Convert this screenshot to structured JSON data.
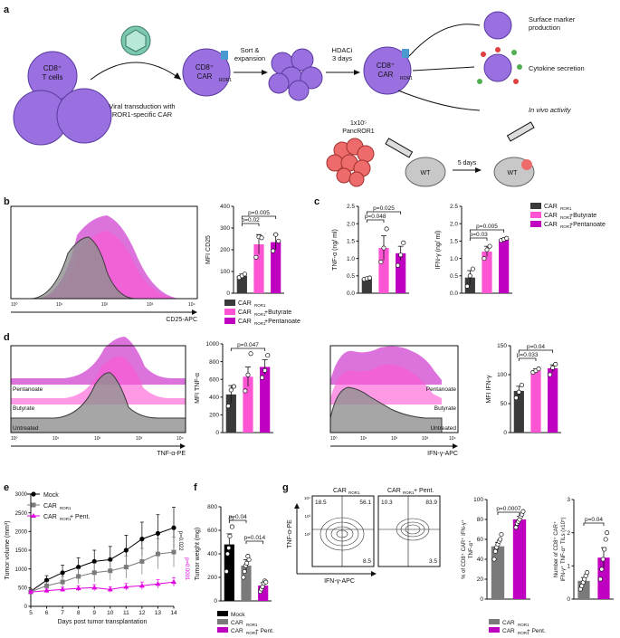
{
  "panel_labels": [
    "a",
    "b",
    "c",
    "d",
    "e",
    "f",
    "g"
  ],
  "colors": {
    "car": "#3a3a3a",
    "butyrate": "#ff55d4",
    "pentanoate": "#c000c0",
    "mock": "#000000",
    "grey": "#7a7a7a",
    "cell": "#9a6fe0"
  },
  "panel_a": {
    "cd8_t_cells": "CD8⁺\nT cells",
    "transduction": "Viral transduction with\nROR1-specific CAR",
    "car_cell": "CD8⁺\nCAR",
    "car_sub": "ROR1",
    "sort": "Sort &\nexpansion",
    "hdaci": "HDACi\n3 days",
    "panc_cells": "1x10⁵\nPancROR1",
    "five_days": "5 days",
    "wt": "WT",
    "outcome_1": "Surface marker\nproduction",
    "outcome_2": "Cytokine secretion",
    "outcome_3": "In vivo activity"
  },
  "legend": {
    "car": "CAR",
    "car_sub": "ROR1",
    "butyrate": "+Butyrate",
    "pentanoate": "+Pentanoate",
    "mock": "Mock",
    "pent": "+ Pent."
  },
  "panel_b": {
    "hist_xlabel": "CD25-APC",
    "hist_ticks": [
      "10⁰",
      "10¹",
      "10²",
      "10³",
      "10⁴"
    ],
    "chart_data": {
      "type": "bar",
      "categories": [
        "CAR ROR1",
        "CAR ROR1 +Butyrate",
        "CAR ROR1 +Pentanoate"
      ],
      "values": [
        80,
        225,
        235
      ],
      "errors": [
        8,
        45,
        35
      ],
      "points": [
        [
          72,
          80,
          88
        ],
        [
          165,
          260,
          255
        ],
        [
          195,
          270,
          240
        ]
      ],
      "ylabel": "MFI CD25",
      "ylim": [
        0,
        400
      ],
      "yticks": [
        0,
        100,
        200,
        300,
        400
      ],
      "annotations": [
        "p=0.005",
        "p=0.02"
      ]
    }
  },
  "panel_c": {
    "tnf": {
      "type": "bar",
      "categories": [
        "CAR ROR1",
        "+Butyrate",
        "+Pentanoate"
      ],
      "values": [
        0.42,
        1.3,
        1.15
      ],
      "errors": [
        0.03,
        0.35,
        0.2
      ],
      "points": [
        [
          0.4,
          0.42,
          0.44
        ],
        [
          0.9,
          1.3,
          1.85
        ],
        [
          0.8,
          1.1,
          1.45
        ]
      ],
      "ylabel": "TNF-α (ng/ ml)",
      "ylim": [
        0,
        2.5
      ],
      "yticks": [
        "0.0",
        "0.5",
        "1.0",
        "1.5",
        "2.0",
        "2.5"
      ],
      "annotations": [
        "p=0.025",
        "p=0.048"
      ]
    },
    "ifn": {
      "type": "bar",
      "categories": [
        "CAR ROR1",
        "+Butyrate",
        "+Pentanoate"
      ],
      "values": [
        0.45,
        1.2,
        1.55
      ],
      "errors": [
        0.2,
        0.15,
        0.03
      ],
      "points": [
        [
          0.2,
          0.5,
          0.7
        ],
        [
          1.0,
          1.25,
          1.35
        ],
        [
          1.52,
          1.55,
          1.58
        ]
      ],
      "ylabel": "IFN-γ (ng/ ml)",
      "ylim": [
        0,
        2.5
      ],
      "yticks": [
        "0.0",
        "0.5",
        "1.0",
        "1.5",
        "2.0",
        "2.5"
      ],
      "annotations": [
        "p=0.005",
        "p=0.03"
      ]
    }
  },
  "panel_d": {
    "hist1_xlabel": "TNF-α-PE",
    "hist2_xlabel": "IFN-γ-APC",
    "row_labels": [
      "Pentanoate",
      "Butyrate",
      "Untreated"
    ],
    "hist_ticks": [
      "10⁰",
      "10¹",
      "10²",
      "10³",
      "10⁴"
    ],
    "tnf": {
      "type": "bar",
      "values": [
        430,
        630,
        740
      ],
      "errors": [
        100,
        110,
        80
      ],
      "points": [
        [
          300,
          480,
          520
        ],
        [
          470,
          650,
          890
        ],
        [
          620,
          700,
          870
        ]
      ],
      "ylabel": "MFI TNF-α",
      "ylim": [
        0,
        1000
      ],
      "yticks": [
        0,
        200,
        400,
        600,
        800,
        1000
      ],
      "annotations": [
        "p=0.047"
      ]
    },
    "ifn": {
      "type": "bar",
      "values": [
        72,
        107,
        111
      ],
      "errors": [
        8,
        3,
        6
      ],
      "points": [
        [
          60,
          70,
          82
        ],
        [
          104,
          107,
          110
        ],
        [
          100,
          112,
          118
        ]
      ],
      "ylabel": "MFI IFN-γ",
      "ylim": [
        0,
        150
      ],
      "yticks": [
        0,
        50,
        100,
        150
      ],
      "annotations": [
        "p=0.04",
        "p=0.033"
      ]
    }
  },
  "panel_e": {
    "chart_data": {
      "type": "line",
      "x": [
        5,
        6,
        7,
        8,
        9,
        10,
        11,
        12,
        13,
        14
      ],
      "series": [
        {
          "name": "Mock",
          "values": [
            400,
            700,
            900,
            1050,
            1200,
            1250,
            1500,
            1800,
            1950,
            2100
          ],
          "errors": [
            60,
            120,
            200,
            250,
            300,
            350,
            400,
            450,
            500,
            550
          ]
        },
        {
          "name": "CAR ROR1",
          "values": [
            390,
            550,
            650,
            800,
            900,
            950,
            1050,
            1200,
            1400,
            1450
          ],
          "errors": [
            50,
            100,
            150,
            200,
            250,
            250,
            300,
            350,
            400,
            400
          ]
        },
        {
          "name": "CAR ROR1 + Pent.",
          "values": [
            380,
            420,
            450,
            480,
            500,
            450,
            520,
            550,
            600,
            650
          ],
          "errors": [
            40,
            50,
            60,
            70,
            80,
            70,
            90,
            100,
            110,
            120
          ]
        }
      ],
      "xlabel": "Days post tumor transplantation",
      "ylabel": "Tumor volume (mm³)",
      "ylim": [
        0,
        3000
      ],
      "yticks": [
        0,
        500,
        1000,
        1500,
        2000,
        2500,
        3000
      ],
      "xticks": [
        5,
        6,
        7,
        8,
        9,
        10,
        11,
        12,
        13,
        14
      ],
      "annotations": [
        "p=0.022",
        "p=0.0001"
      ]
    }
  },
  "panel_f": {
    "chart_data": {
      "type": "bar",
      "categories": [
        "Mock",
        "CAR ROR1",
        "CAR ROR1 + Pent."
      ],
      "values": [
        480,
        300,
        130
      ],
      "errors": [
        90,
        50,
        25
      ],
      "points": [
        [
          250,
          400,
          450,
          550,
          700,
          630
        ],
        [
          200,
          250,
          300,
          320,
          380,
          350
        ],
        [
          80,
          100,
          120,
          150,
          170,
          160
        ]
      ],
      "ylabel": "Tumor weight (mg)",
      "ylim": [
        0,
        800
      ],
      "yticks": [
        0,
        200,
        400,
        600,
        800
      ],
      "annotations": [
        "p=0.04",
        "p=0.014"
      ]
    }
  },
  "panel_g": {
    "flow1_title": "CAR",
    "flow1_sub": "ROR1",
    "flow2_title": "CAR",
    "flow2_sub": "ROR1",
    "flow2_suffix": "+ Pent.",
    "flow1_q": [
      "18.5",
      "56.1",
      "8.5"
    ],
    "flow2_q": [
      "10.3",
      "83.9",
      "3.5"
    ],
    "flow_ylabel": "TNF-α-PE",
    "flow_xlabel": "IFN-γ-APC",
    "flow_yticks": [
      "10²",
      "10³",
      "10⁴"
    ],
    "pct": {
      "type": "bar",
      "values": [
        53,
        80
      ],
      "errors": [
        4,
        3
      ],
      "points": [
        [
          40,
          48,
          52,
          55,
          58,
          60,
          65
        ],
        [
          72,
          76,
          78,
          80,
          83,
          85,
          88
        ]
      ],
      "ylabel": "% of CD8⁺ CAR⁺ IFN-γ⁺ TNF-α⁺",
      "ylim": [
        0,
        100
      ],
      "yticks": [
        0,
        20,
        40,
        60,
        80,
        100
      ],
      "annotations": [
        "p=0.0007"
      ]
    },
    "count": {
      "type": "bar",
      "values": [
        0.55,
        1.25
      ],
      "errors": [
        0.1,
        0.3
      ],
      "points": [
        [
          0.3,
          0.4,
          0.5,
          0.6,
          0.7,
          0.8
        ],
        [
          0.6,
          0.9,
          1.2,
          1.5,
          1.8,
          2.0
        ]
      ],
      "ylabel": "Number of CD8⁺ CAR⁺ IFN-γ⁺ TNF-α⁺ TILs (x10⁵)",
      "ylim": [
        0,
        3
      ],
      "yticks": [
        0,
        1,
        2,
        3
      ],
      "annotations": [
        "p=0.04"
      ]
    }
  }
}
